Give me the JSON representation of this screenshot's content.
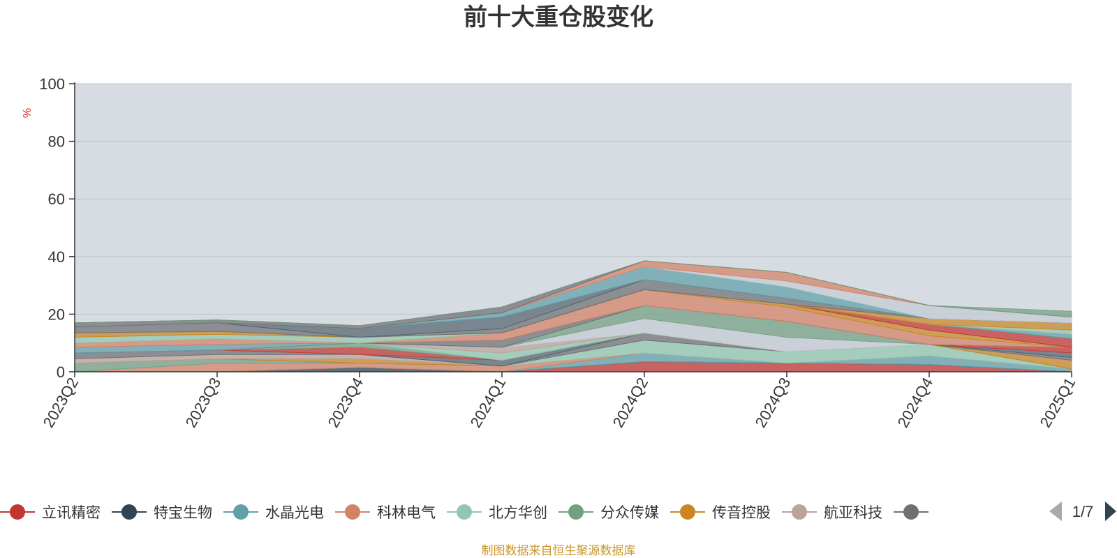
{
  "chart_data": {
    "type": "area",
    "title": "前十大重仓股变化",
    "ylabel": "%",
    "ylim": [
      0,
      100
    ],
    "yticks": [
      "0",
      "20",
      "40",
      "60",
      "80",
      "100"
    ],
    "categories": [
      "2023Q2",
      "2023Q3",
      "2023Q4",
      "2024Q1",
      "2024Q2",
      "2024Q3",
      "2024Q4",
      "2025Q1"
    ],
    "stacked": true,
    "grid": true,
    "legend_position": "bottom",
    "series": [
      {
        "name": "立讯精密",
        "color": "#c23531",
        "values": [
          0,
          0,
          0,
          0,
          3.5,
          3.0,
          2.5,
          0
        ]
      },
      {
        "name": "特宝生物",
        "color": "#2f4554",
        "values": [
          0,
          0,
          1.5,
          0,
          0,
          0,
          0,
          0
        ]
      },
      {
        "name": "水晶光电",
        "color": "#61a0a8",
        "values": [
          0,
          0,
          0,
          0,
          3.0,
          0,
          3.0,
          1.0
        ]
      },
      {
        "name": "科林电气",
        "color": "#d48265",
        "values": [
          0,
          3.0,
          1.5,
          2.0,
          0,
          0,
          0,
          0
        ]
      },
      {
        "name": "北方华创",
        "color": "#91c7ae",
        "values": [
          0,
          0,
          0,
          0,
          4.5,
          4.0,
          4.0,
          0
        ]
      },
      {
        "name": "分众传媒",
        "color": "#749f83",
        "values": [
          3.0,
          1.5,
          0,
          0,
          0,
          0,
          0,
          0
        ]
      },
      {
        "name": "传音控股",
        "color": "#ca8622",
        "values": [
          0,
          0,
          1.5,
          0,
          0,
          0,
          0,
          3.0
        ]
      },
      {
        "name": "航亚科技",
        "color": "#bda29a",
        "values": [
          1.5,
          1.5,
          1.5,
          0,
          0,
          0,
          0,
          0
        ]
      },
      {
        "name": "",
        "color": "#6e7074",
        "values": [
          2.0,
          1.5,
          0,
          0,
          2.5,
          0,
          0,
          1.0
        ]
      },
      {
        "name": "",
        "color": "#546570",
        "values": [
          0,
          0,
          0,
          2.0,
          0,
          0,
          0,
          1.5
        ]
      },
      {
        "name": "",
        "color": "#c4ccd3",
        "values": [
          0,
          0,
          0,
          0,
          0,
          0,
          0,
          0
        ]
      },
      {
        "name": "",
        "color": "#c23531",
        "values": [
          0,
          0,
          2.5,
          0,
          0,
          0,
          0,
          2.0
        ]
      },
      {
        "name": "",
        "color": "#749f83",
        "values": [
          0,
          0,
          1.5,
          0,
          0,
          0,
          0,
          0
        ]
      },
      {
        "name": "",
        "color": "#91c7ae",
        "values": [
          0,
          0,
          0,
          2.5,
          0,
          0,
          0,
          0
        ]
      },
      {
        "name": "",
        "color": "#bda29a",
        "values": [
          0,
          0,
          0,
          2.0,
          0,
          0,
          0,
          0
        ]
      },
      {
        "name": "",
        "color": "#c4ccd3",
        "values": [
          0,
          0,
          0,
          0,
          5.0,
          5.0,
          0,
          0
        ]
      },
      {
        "name": "",
        "color": "#749f83",
        "values": [
          0,
          0,
          0,
          0,
          4.5,
          5.5,
          0,
          0
        ]
      },
      {
        "name": "",
        "color": "#6e7074",
        "values": [
          0,
          0,
          0,
          2.5,
          0,
          0,
          0,
          0
        ]
      },
      {
        "name": "",
        "color": "#d48265",
        "values": [
          0,
          0,
          0,
          2.5,
          5.5,
          5.0,
          3.0,
          0
        ]
      },
      {
        "name": "",
        "color": "#ca8622",
        "values": [
          0,
          0,
          0,
          0,
          0,
          1.0,
          2.0,
          0
        ]
      },
      {
        "name": "",
        "color": "#c23531",
        "values": [
          0,
          0,
          0,
          0,
          0,
          0,
          2.0,
          3.0
        ]
      },
      {
        "name": "",
        "color": "#61a0a8",
        "values": [
          2.0,
          2.0,
          0,
          0,
          0,
          0,
          0,
          1.5
        ]
      },
      {
        "name": "",
        "color": "#d48265",
        "values": [
          1.5,
          2.0,
          0,
          0,
          0,
          0,
          0,
          0
        ]
      },
      {
        "name": "",
        "color": "#91c7ae",
        "values": [
          2.0,
          1.5,
          2.0,
          0,
          0,
          0,
          0,
          1.5
        ]
      },
      {
        "name": "",
        "color": "#ca8622",
        "values": [
          1.5,
          1.0,
          0,
          0,
          0,
          0,
          2.0,
          2.5
        ]
      },
      {
        "name": "",
        "color": "#6e7074",
        "values": [
          2.0,
          3.0,
          0,
          1.5,
          3.5,
          2.0,
          0,
          0
        ]
      },
      {
        "name": "",
        "color": "#546570",
        "values": [
          0,
          0,
          3.0,
          4.0,
          0,
          0,
          0,
          0
        ]
      },
      {
        "name": "",
        "color": "#61a0a8",
        "values": [
          0,
          0,
          0,
          1.5,
          4.5,
          4.0,
          0,
          0
        ]
      },
      {
        "name": "",
        "color": "#c4ccd3",
        "values": [
          0,
          0,
          0,
          0,
          0,
          2.0,
          4.5,
          2.0
        ]
      },
      {
        "name": "",
        "color": "#d48265",
        "values": [
          0,
          0,
          0,
          0,
          2.0,
          3.0,
          0,
          0
        ]
      },
      {
        "name": "",
        "color": "#6e7074",
        "values": [
          1.5,
          1.0,
          1.0,
          2.0,
          0,
          0,
          0,
          0
        ]
      },
      {
        "name": "",
        "color": "#749f83",
        "values": [
          0,
          0,
          0,
          0,
          0,
          0,
          0,
          2.0
        ]
      }
    ]
  },
  "legend": {
    "items": [
      {
        "name": "立讯精密",
        "color": "#c23531"
      },
      {
        "name": "特宝生物",
        "color": "#2f4554"
      },
      {
        "name": "水晶光电",
        "color": "#61a0a8"
      },
      {
        "name": "科林电气",
        "color": "#d48265"
      },
      {
        "name": "北方华创",
        "color": "#91c7ae"
      },
      {
        "name": "分众传媒",
        "color": "#749f83"
      },
      {
        "name": "传音控股",
        "color": "#ca8622"
      },
      {
        "name": "航亚科技",
        "color": "#bda29a"
      },
      {
        "name": "",
        "color": "#6e7074"
      }
    ],
    "page_indicator": "1/7"
  },
  "source_note": "制图数据来自恒生聚源数据库",
  "colors": {
    "plot_background": "#d7dce3",
    "axis": "#333333",
    "grid": "#bcc3cc",
    "unit_label": "#e02020",
    "source_note": "#c9962a",
    "pager_prev_disabled": "#aaaaaa",
    "pager_next_active": "#2f4554"
  }
}
